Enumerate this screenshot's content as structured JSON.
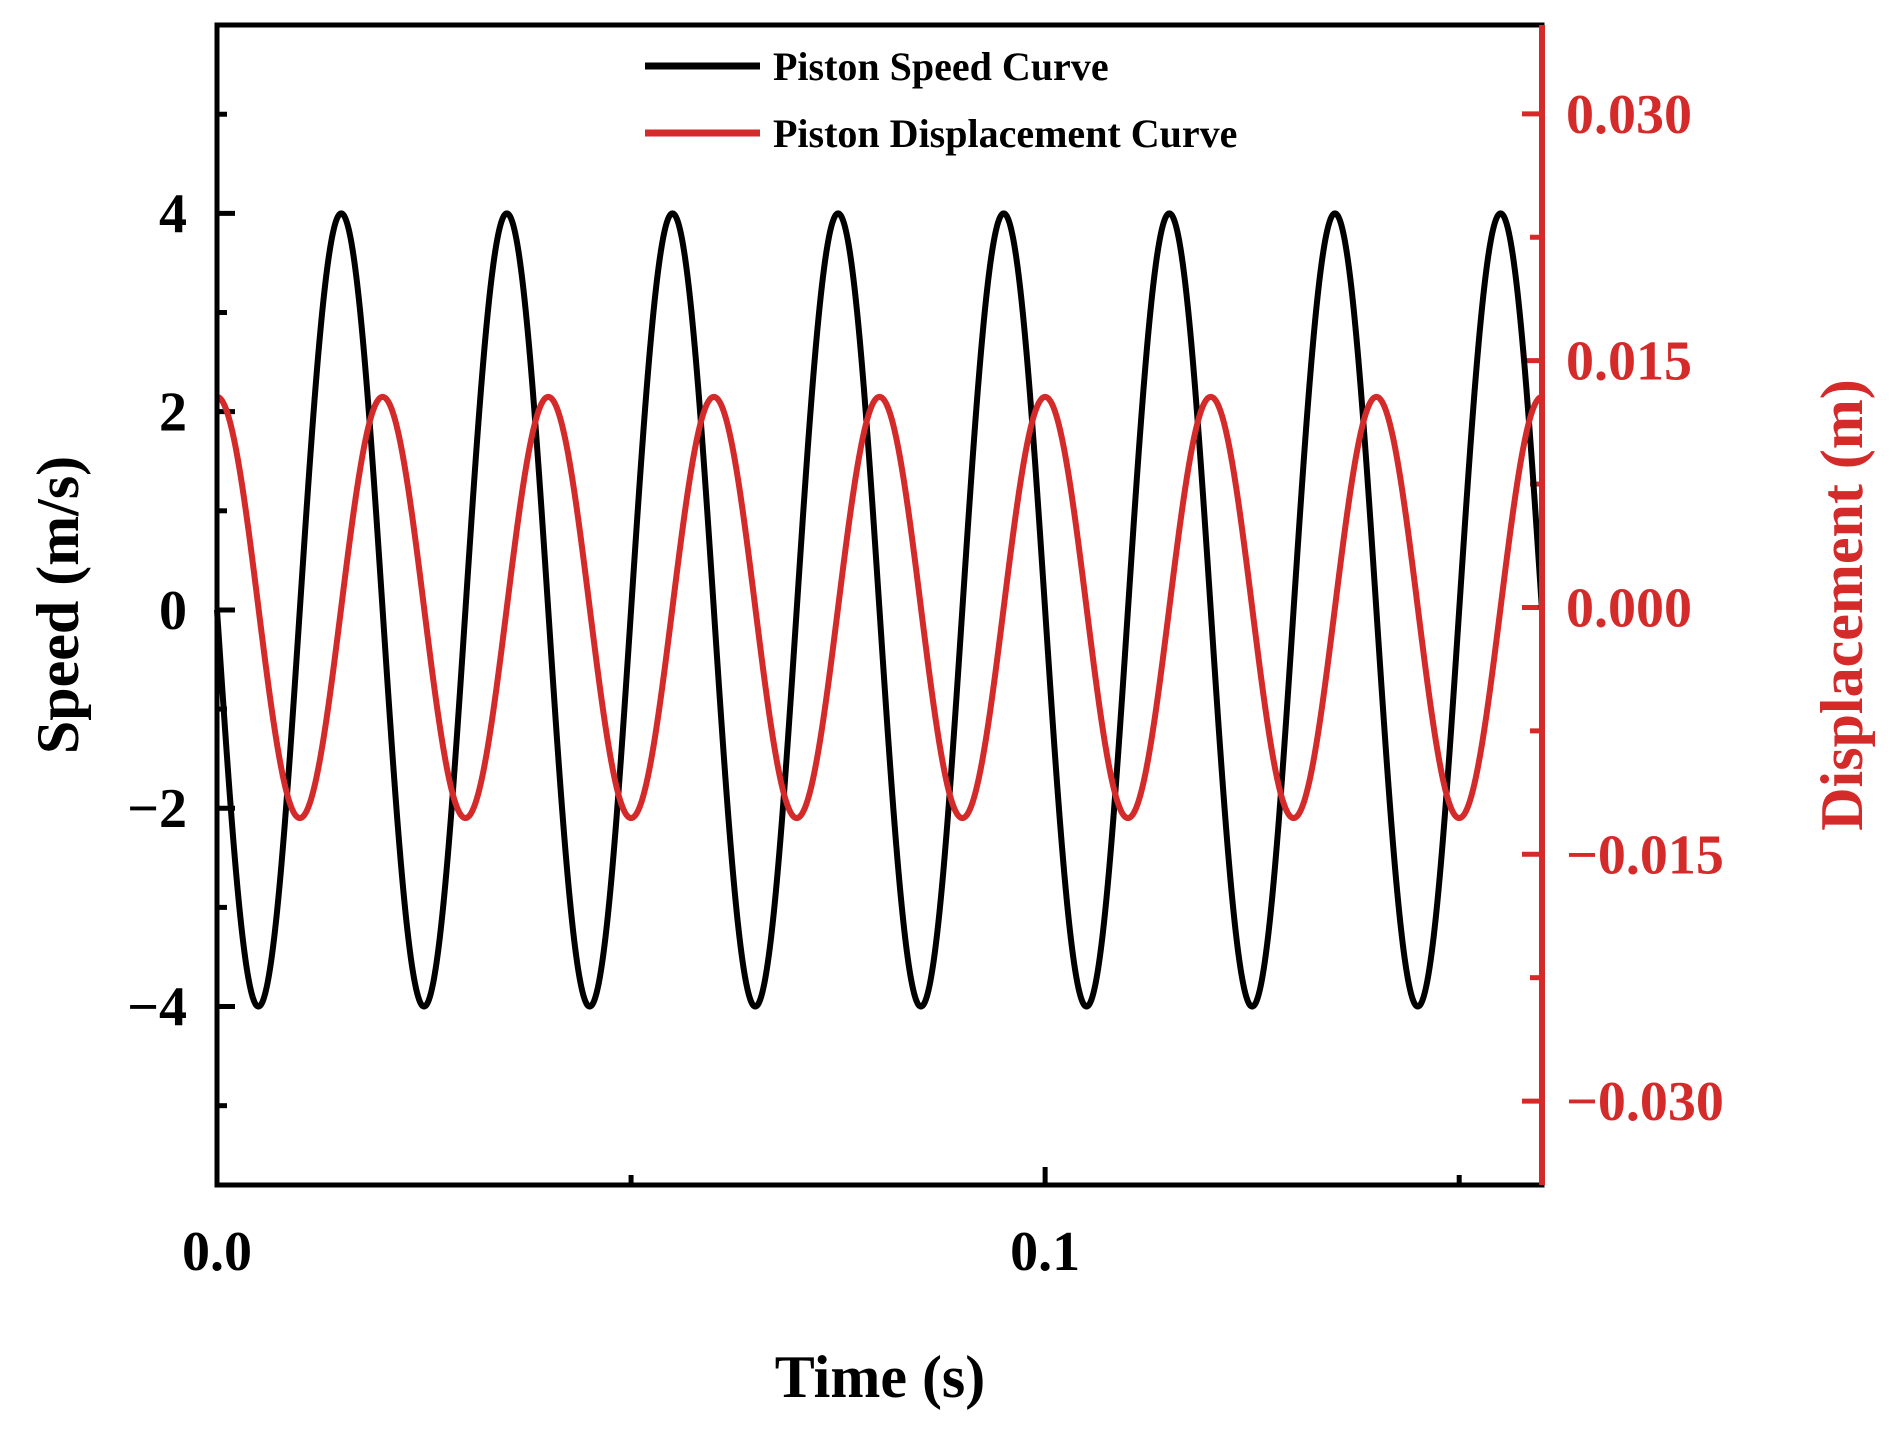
{
  "chart_data": {
    "type": "line",
    "title": "",
    "xlabel": "Time (s)",
    "ylabel": "Speed (m/s)",
    "y2label": "Displacement (m)",
    "xlim": [
      0,
      0.16
    ],
    "ylim": [
      -5.8,
      5.9
    ],
    "y2lim": [
      -0.0351,
      0.0354
    ],
    "x_ticks": [
      0.0,
      0.1
    ],
    "x_tick_labels": [
      "0.0",
      "0.1"
    ],
    "x_minor_ticks": [
      0.05,
      0.15
    ],
    "y_ticks": [
      -4,
      -2,
      0,
      2,
      4
    ],
    "y_tick_labels": [
      "−4",
      "−2",
      "0",
      "2",
      "4"
    ],
    "y_minor_ticks": [
      -5,
      -3,
      -1,
      1,
      3,
      5
    ],
    "y2_ticks": [
      -0.03,
      -0.015,
      0.0,
      0.015,
      0.03
    ],
    "y2_tick_labels": [
      "−0.030",
      "−0.015",
      "0.000",
      "0.015",
      "0.030"
    ],
    "y2_minor_ticks": [
      -0.0225,
      -0.0075,
      0.0075,
      0.0225
    ],
    "legend_position": "top-center",
    "grid": false,
    "series": [
      {
        "name": "Piston Speed Curve",
        "axis": "left",
        "color": "#000000",
        "function": "amplitude*sin(2*pi*frequency*t + phase)",
        "amplitude": 4.0,
        "frequency": 50,
        "phase": 3.1416,
        "peaks": {
          "max": 4.0,
          "min": -4.0
        }
      },
      {
        "name": "Piston Displacement Curve",
        "axis": "right",
        "color": "#d42a2a",
        "function": "amplitude*cos(2*pi*frequency*t + phase)",
        "amplitude": 0.0128,
        "frequency": 50,
        "phase": 0.0,
        "peaks": {
          "max": 0.0128,
          "min": -0.0128
        }
      }
    ]
  }
}
